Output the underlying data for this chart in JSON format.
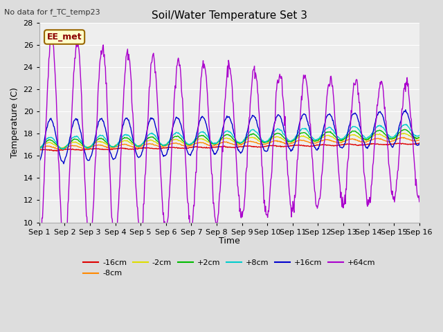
{
  "title": "Soil/Water Temperature Set 3",
  "ylabel": "Temperature (C)",
  "xlabel": "Time",
  "top_left_text": "No data for f_TC_temp23",
  "box_label": "EE_met",
  "ylim": [
    10,
    28
  ],
  "yticks": [
    10,
    12,
    14,
    16,
    18,
    20,
    22,
    24,
    26,
    28
  ],
  "xtick_labels": [
    "Sep 1",
    "Sep 2",
    "Sep 3",
    "Sep 4",
    "Sep 5",
    "Sep 6",
    "Sep 7",
    "Sep 8",
    "Sep 9",
    "Sep 10",
    "Sep 11",
    "Sep 12",
    "Sep 13",
    "Sep 14",
    "Sep 15",
    "Sep 16"
  ],
  "series_colors": {
    "-16cm": "#dd0000",
    "-8cm": "#ff8800",
    "-2cm": "#dddd00",
    "+2cm": "#00bb00",
    "+8cm": "#00cccc",
    "+16cm": "#0000cc",
    "+64cm": "#aa00cc"
  },
  "bg_color": "#dddddd",
  "plot_bg_color": "#eeeeee",
  "grid_color": "#ffffff"
}
